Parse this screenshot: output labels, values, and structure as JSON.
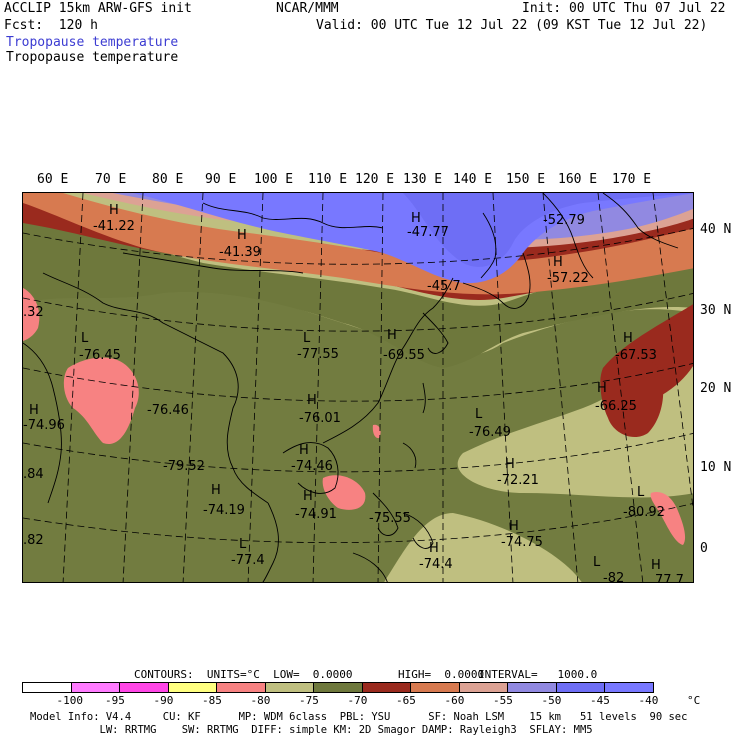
{
  "header": {
    "model_title": "ACCLIP 15km ARW-GFS init",
    "center": "NCAR/MMM",
    "init": "Init: 00 UTC Thu 07 Jul 22",
    "fcst": "Fcst:  120 h",
    "valid": "Valid: 00 UTC Tue 12 Jul 22 (09 KST Tue 12 Jul 22)",
    "field_title_1": "Tropopause temperature",
    "field_title_2": "Tropopause temperature"
  },
  "map": {
    "lon_labels": [
      "60 E",
      "70 E",
      "80 E",
      "90 E",
      "100 E",
      "110 E",
      "120 E",
      "130 E",
      "140 E",
      "150 E",
      "160 E",
      "170 E"
    ],
    "lat_labels": [
      "40 N",
      "30 N",
      "20 N",
      "10 N",
      "0"
    ],
    "annotations": [
      {
        "text": "H",
        "kind": "marker"
      },
      {
        "text": "-41.22",
        "kind": "value"
      },
      {
        "text": "H",
        "kind": "marker"
      },
      {
        "text": "-41.39",
        "kind": "value"
      },
      {
        "text": "H",
        "kind": "marker"
      },
      {
        "text": "-47.77",
        "kind": "value"
      },
      {
        "text": "-52.79",
        "kind": "value"
      },
      {
        "text": "H",
        "kind": "marker"
      },
      {
        "text": "-57.22",
        "kind": "value"
      },
      {
        "text": "-45.7",
        "kind": "value"
      },
      {
        "text": ".32",
        "kind": "value"
      },
      {
        "text": "L",
        "kind": "marker"
      },
      {
        "text": "-76.45",
        "kind": "value"
      },
      {
        "text": "L",
        "kind": "marker"
      },
      {
        "text": "-77.55",
        "kind": "value"
      },
      {
        "text": "H",
        "kind": "marker"
      },
      {
        "text": "-69.55",
        "kind": "value"
      },
      {
        "text": "H",
        "kind": "marker"
      },
      {
        "text": "-67.53",
        "kind": "value"
      },
      {
        "text": "H",
        "kind": "marker"
      },
      {
        "text": "-74.96",
        "kind": "value"
      },
      {
        "text": "-76.46",
        "kind": "value"
      },
      {
        "text": "H",
        "kind": "marker"
      },
      {
        "text": "-76.01",
        "kind": "value"
      },
      {
        "text": "H",
        "kind": "marker"
      },
      {
        "text": "-66.25",
        "kind": "value"
      },
      {
        "text": "L",
        "kind": "marker"
      },
      {
        "text": "-76.49",
        "kind": "value"
      },
      {
        "text": ".84",
        "kind": "value"
      },
      {
        "text": "-79.52",
        "kind": "value"
      },
      {
        "text": "H",
        "kind": "marker"
      },
      {
        "text": "-74.46",
        "kind": "value"
      },
      {
        "text": "H",
        "kind": "marker"
      },
      {
        "text": "-72.21",
        "kind": "value"
      },
      {
        "text": "H",
        "kind": "marker"
      },
      {
        "text": "-74.19",
        "kind": "value"
      },
      {
        "text": "H",
        "kind": "marker"
      },
      {
        "text": "-74.91",
        "kind": "value"
      },
      {
        "text": "-75.55",
        "kind": "value"
      },
      {
        "text": "L",
        "kind": "marker"
      },
      {
        "text": "-80.92",
        "kind": "value"
      },
      {
        "text": "H",
        "kind": "marker"
      },
      {
        "text": "-74.75",
        "kind": "value"
      },
      {
        "text": ".82",
        "kind": "value"
      },
      {
        "text": "L",
        "kind": "marker"
      },
      {
        "text": "-77.4",
        "kind": "value"
      },
      {
        "text": "H",
        "kind": "marker"
      },
      {
        "text": "-74.4",
        "kind": "value"
      },
      {
        "text": "L",
        "kind": "marker"
      },
      {
        "text": "-82",
        "kind": "value"
      },
      {
        "text": "H",
        "kind": "marker"
      },
      {
        "text": "77.7",
        "kind": "value"
      }
    ]
  },
  "contour_info": {
    "contours": "CONTOURS:  UNITS=°C  LOW=  0.0000",
    "high": "HIGH=  0.0000",
    "interval": "INTERVAL=   1000.0"
  },
  "colorbar": {
    "labels": [
      "-100",
      "-95",
      "-90",
      "-85",
      "-80",
      "-75",
      "-70",
      "-65",
      "-60",
      "-55",
      "-50",
      "-45",
      "-40",
      "°C"
    ],
    "colors": [
      "#ffffff",
      "#ff7bff",
      "#ff46e6",
      "#ffff80",
      "#f78282",
      "#bfbf80",
      "#6e783c",
      "#9a2a1e",
      "#d77a50",
      "#dca294",
      "#9189e1",
      "#6e6ef5",
      "#7878ff"
    ]
  },
  "footer": {
    "line1": "Model Info: V4.4     CU: KF      MP: WDM 6class  PBL: YSU      SF: Noah LSM    15 km   51 levels  90 sec",
    "line2": "           LW: RRTMG    SW: RRTMG  DIFF: simple KM: 2D Smagor DAMP: Rayleigh3  SFLAY: MM5"
  },
  "colors": {
    "field_title_color": "#3c3cd2"
  }
}
